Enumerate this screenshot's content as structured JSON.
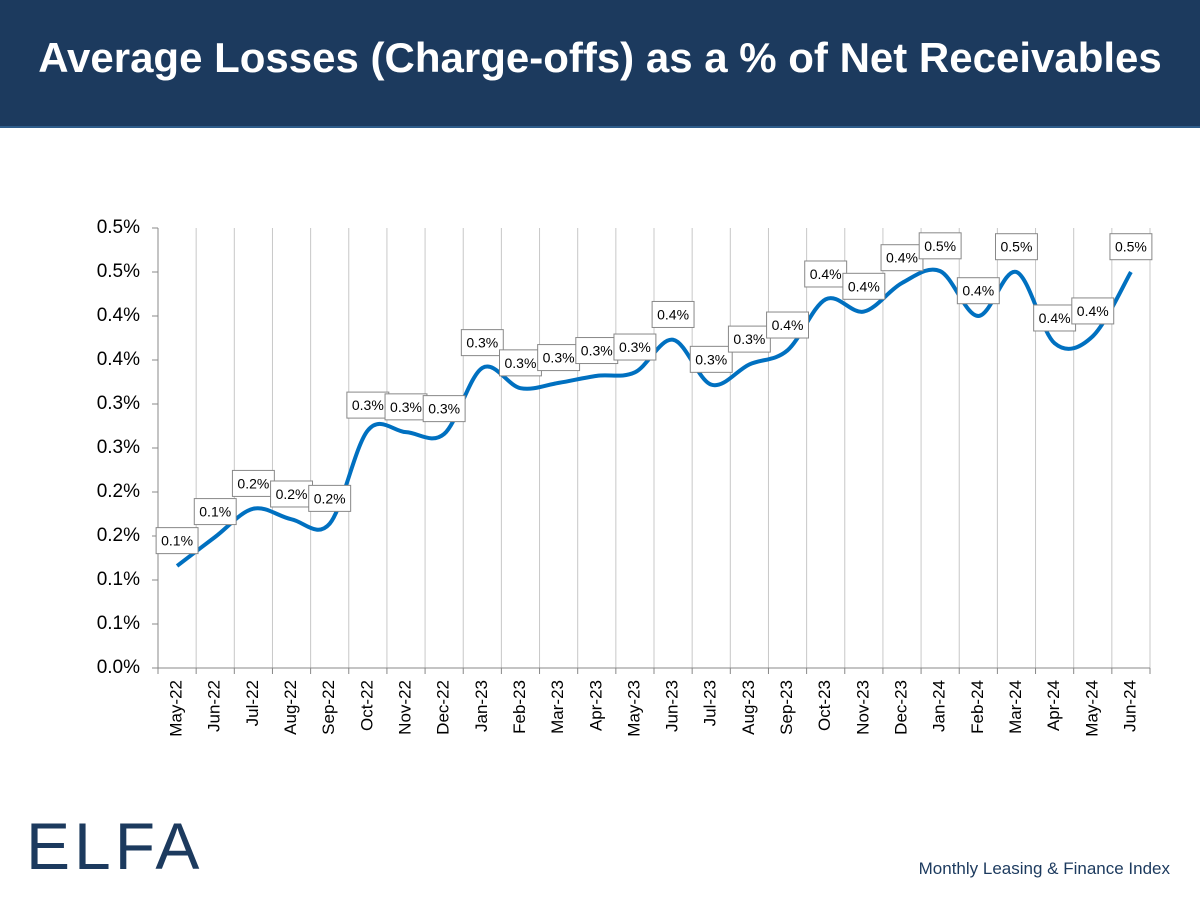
{
  "chart_data": {
    "type": "line",
    "title": "Average Losses (Charge-offs) as a % of Net Receivables",
    "categories": [
      "May-22",
      "Jun-22",
      "Jul-22",
      "Aug-22",
      "Sep-22",
      "Oct-22",
      "Nov-22",
      "Dec-22",
      "Jan-23",
      "Feb-23",
      "Mar-23",
      "Apr-23",
      "May-23",
      "Jun-23",
      "Jul-23",
      "Aug-23",
      "Sep-23",
      "Oct-23",
      "Nov-23",
      "Dec-23",
      "Jan-24",
      "Feb-24",
      "Mar-24",
      "Apr-24",
      "May-24",
      "Jun-24"
    ],
    "series": [
      {
        "name": "Average Losses",
        "color": "#0070c0",
        "values": [
          0.116,
          0.149,
          0.181,
          0.169,
          0.164,
          0.27,
          0.268,
          0.266,
          0.341,
          0.318,
          0.324,
          0.332,
          0.336,
          0.373,
          0.322,
          0.345,
          0.361,
          0.419,
          0.405,
          0.4375,
          0.451,
          0.4,
          0.45,
          0.369,
          0.377,
          0.45
        ],
        "value_labels": [
          "0.1%",
          "0.1%",
          "0.2%",
          "0.2%",
          "0.2%",
          "0.3%",
          "0.3%",
          "0.3%",
          "0.3%",
          "0.3%",
          "0.3%",
          "0.3%",
          "0.3%",
          "0.4%",
          "0.3%",
          "0.3%",
          "0.4%",
          "0.4%",
          "0.4%",
          "0.4%",
          "0.5%",
          "0.4%",
          "0.5%",
          "0.4%",
          "0.4%",
          "0.5%"
        ]
      }
    ],
    "ylim": [
      0,
      0.5
    ],
    "yticks": [
      {
        "value": 0,
        "label": "0.0%"
      },
      {
        "value": 0.05,
        "label": "0.1%"
      },
      {
        "value": 0.1,
        "label": "0.1%"
      },
      {
        "value": 0.15,
        "label": "0.2%"
      },
      {
        "value": 0.2,
        "label": "0.2%"
      },
      {
        "value": 0.25,
        "label": "0.3%"
      },
      {
        "value": 0.3,
        "label": "0.3%"
      },
      {
        "value": 0.35,
        "label": "0.4%"
      },
      {
        "value": 0.4,
        "label": "0.4%"
      },
      {
        "value": 0.45,
        "label": "0.5%"
      },
      {
        "value": 0.5,
        "label": "0.5%"
      }
    ],
    "grid": "vertical",
    "logo": "ELFA",
    "footer": "Monthly Leasing & Finance Index"
  }
}
